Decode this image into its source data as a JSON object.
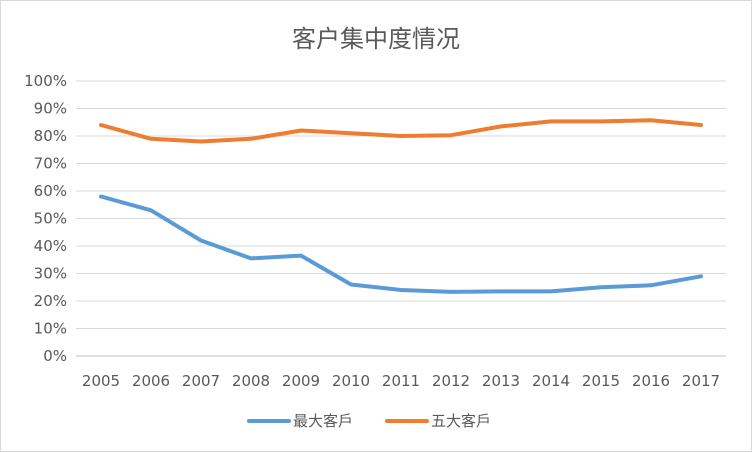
{
  "chart_data": {
    "type": "line",
    "title": "客户集中度情况",
    "xlabel": "",
    "ylabel": "",
    "ylim": [
      0,
      1
    ],
    "y_tick_format": "percent",
    "grid": true,
    "legend_position": "bottom",
    "categories": [
      "2005",
      "2006",
      "2007",
      "2008",
      "2009",
      "2010",
      "2011",
      "2012",
      "2013",
      "2014",
      "2015",
      "2016",
      "2017"
    ],
    "y_ticks": [
      "0%",
      "10%",
      "20%",
      "30%",
      "40%",
      "50%",
      "60%",
      "70%",
      "80%",
      "90%",
      "100%"
    ],
    "series": [
      {
        "name": "最大客戶",
        "color": "#5b9bd5",
        "values": [
          0.58,
          0.53,
          0.42,
          0.355,
          0.365,
          0.26,
          0.24,
          0.233,
          0.235,
          0.235,
          0.25,
          0.257,
          0.29
        ]
      },
      {
        "name": "五大客戶",
        "color": "#ed7d31",
        "values": [
          0.84,
          0.79,
          0.78,
          0.79,
          0.82,
          0.81,
          0.8,
          0.803,
          0.835,
          0.853,
          0.853,
          0.857,
          0.84
        ]
      }
    ]
  }
}
